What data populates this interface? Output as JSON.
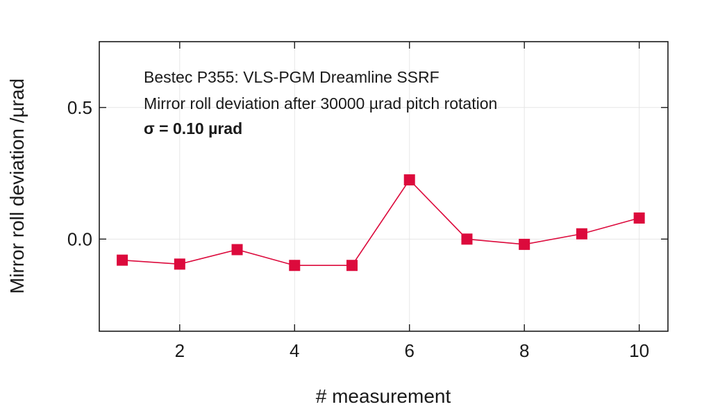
{
  "chart_data": {
    "type": "line",
    "title": "",
    "xlabel": "# measurement",
    "ylabel": "Mirror roll deviation /µrad",
    "xlim": [
      0.6,
      10.5
    ],
    "ylim": [
      -0.35,
      0.75
    ],
    "x_ticks": [
      2,
      4,
      6,
      8,
      10
    ],
    "x_tick_labels": [
      "2",
      "4",
      "6",
      "8",
      "10"
    ],
    "y_ticks": [
      0.0,
      0.5
    ],
    "y_tick_labels": [
      "0.0",
      "0.5"
    ],
    "grid": true,
    "series": [
      {
        "color": "#dc0a3c",
        "marker": "square",
        "x": [
          1,
          2,
          3,
          4,
          5,
          6,
          7,
          8,
          9,
          10
        ],
        "y": [
          -0.08,
          -0.095,
          -0.04,
          -0.1,
          -0.1,
          0.225,
          0.0,
          -0.02,
          0.02,
          0.08
        ]
      }
    ],
    "annotations": [
      "Bestec P355: VLS-PGM Dreamline SSRF",
      "Mirror roll deviation after 30000 µrad pitch rotation",
      "σ  = 0.10 µrad"
    ]
  }
}
